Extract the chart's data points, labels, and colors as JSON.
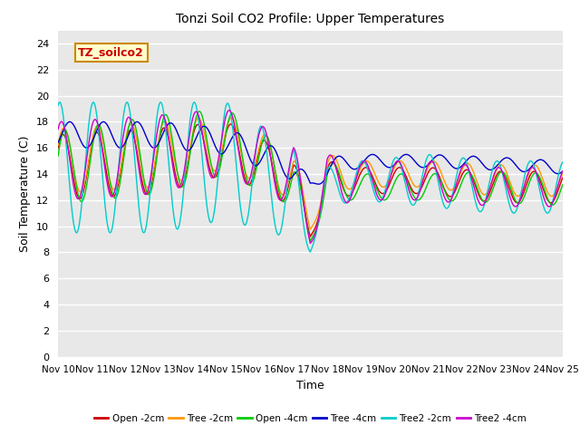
{
  "title": "Tonzi Soil CO2 Profile: Upper Temperatures",
  "xlabel": "Time",
  "ylabel": "Soil Temperature (C)",
  "ylim": [
    0,
    25
  ],
  "yticks": [
    0,
    2,
    4,
    6,
    8,
    10,
    12,
    14,
    16,
    18,
    20,
    22,
    24
  ],
  "xlim": [
    0,
    360
  ],
  "xtick_labels": [
    "Nov 10",
    "Nov 11",
    "Nov 12",
    "Nov 13",
    "Nov 14",
    "Nov 15",
    "Nov 16",
    "Nov 17",
    "Nov 18",
    "Nov 19",
    "Nov 20",
    "Nov 21",
    "Nov 22",
    "Nov 23",
    "Nov 24",
    "Nov 25"
  ],
  "xtick_positions": [
    0,
    24,
    48,
    72,
    96,
    120,
    144,
    168,
    192,
    216,
    240,
    264,
    288,
    312,
    336,
    360
  ],
  "annotation_text": "TZ_soilco2",
  "annotation_color": "#cc0000",
  "annotation_bg": "#ffffcc",
  "annotation_border": "#cc8800",
  "series_labels": [
    "Open -2cm",
    "Tree -2cm",
    "Open -4cm",
    "Tree -4cm",
    "Tree2 -2cm",
    "Tree2 -4cm"
  ],
  "series_colors": [
    "#cc0000",
    "#ff9900",
    "#00cc00",
    "#0000cc",
    "#00cccc",
    "#cc00cc"
  ],
  "bg_color": "#e8e8e8",
  "grid_color": "#ffffff",
  "n_points": 3601,
  "figsize": [
    6.4,
    4.8
  ],
  "dpi": 100
}
